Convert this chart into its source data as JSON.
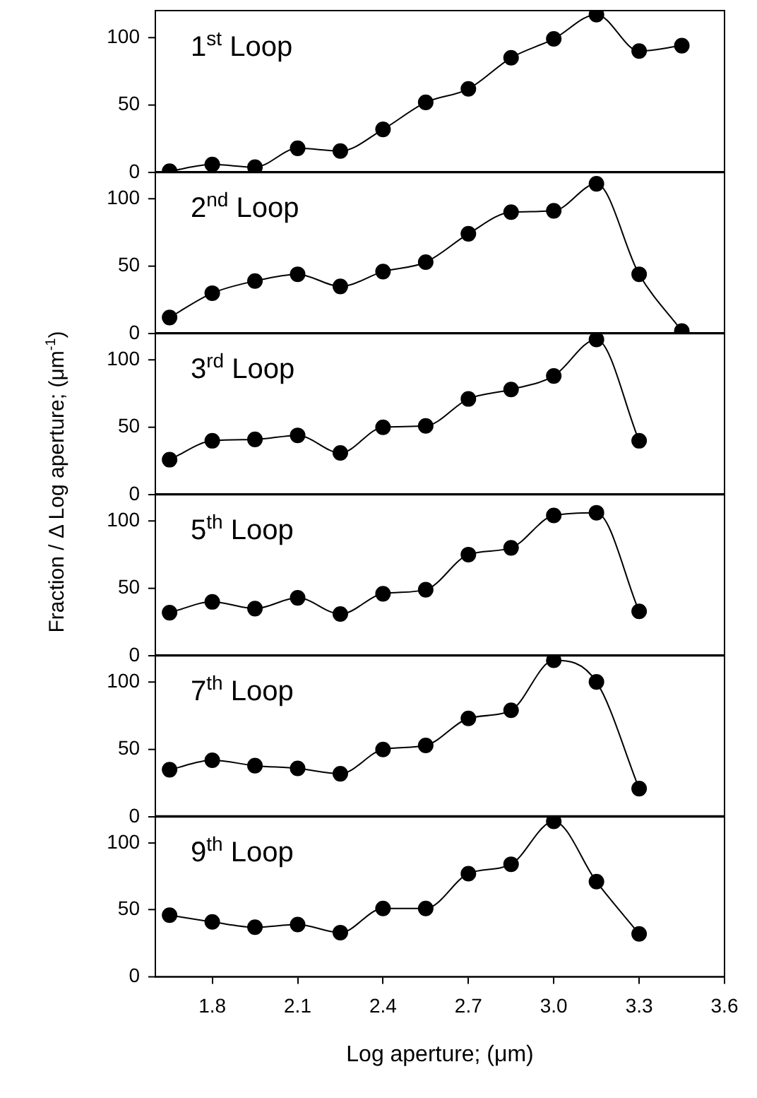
{
  "chart_data": [
    {
      "type": "line",
      "annotations": [
        "1$^{st}$ Loop"
      ],
      "x": [
        1.65,
        1.8,
        1.95,
        2.1,
        2.25,
        2.4,
        2.55,
        2.7,
        2.85,
        3.0,
        3.15,
        3.3,
        3.45
      ],
      "series": [
        {
          "color": "#000000",
          "values": [
            1,
            6,
            4,
            18,
            16,
            32,
            52,
            62,
            85,
            99,
            117,
            90,
            94
          ]
        }
      ],
      "xlim": [
        1.6,
        3.6
      ],
      "ylim": [
        0,
        120
      ],
      "yticks": [
        0,
        50,
        100
      ],
      "tick_labels": "y",
      "grid": false,
      "legend": false,
      "marker": "circle",
      "line_style": "solid"
    },
    {
      "type": "line",
      "annotations": [
        "2$^{nd}$ Loop"
      ],
      "x": [
        1.65,
        1.8,
        1.95,
        2.1,
        2.25,
        2.4,
        2.55,
        2.7,
        2.85,
        3.0,
        3.15,
        3.3,
        3.45
      ],
      "series": [
        {
          "color": "#000000",
          "values": [
            12,
            30,
            39,
            44,
            35,
            46,
            53,
            74,
            90,
            91,
            111,
            44,
            2
          ]
        }
      ],
      "xlim": [
        1.6,
        3.6
      ],
      "ylim": [
        0,
        120
      ],
      "yticks": [
        0,
        50,
        100
      ],
      "tick_labels": "y",
      "grid": false,
      "legend": false,
      "marker": "circle",
      "line_style": "solid"
    },
    {
      "type": "line",
      "ylabel": "Fraction / Δ Log aperture; (μm$^{-1}$)",
      "annotations": [
        "3$^{rd}$ Loop"
      ],
      "x": [
        1.65,
        1.8,
        1.95,
        2.1,
        2.25,
        2.4,
        2.55,
        2.7,
        2.85,
        3.0,
        3.15,
        3.3
      ],
      "series": [
        {
          "color": "#000000",
          "values": [
            26,
            40,
            41,
            44,
            31,
            50,
            51,
            71,
            78,
            88,
            115,
            40
          ]
        }
      ],
      "xlim": [
        1.6,
        3.6
      ],
      "ylim": [
        0,
        120
      ],
      "yticks": [
        0,
        50,
        100
      ],
      "tick_labels": "y",
      "grid": false,
      "legend": false,
      "marker": "circle",
      "line_style": "solid"
    },
    {
      "type": "line",
      "annotations": [
        "5$^{th}$ Loop"
      ],
      "x": [
        1.65,
        1.8,
        1.95,
        2.1,
        2.25,
        2.4,
        2.55,
        2.7,
        2.85,
        3.0,
        3.15,
        3.3
      ],
      "series": [
        {
          "color": "#000000",
          "values": [
            32,
            40,
            35,
            43,
            31,
            46,
            49,
            75,
            80,
            104,
            106,
            33
          ]
        }
      ],
      "xlim": [
        1.6,
        3.6
      ],
      "ylim": [
        0,
        120
      ],
      "yticks": [
        0,
        50,
        100
      ],
      "tick_labels": "y",
      "grid": false,
      "legend": false,
      "marker": "circle",
      "line_style": "solid"
    },
    {
      "type": "line",
      "annotations": [
        "7$^{th}$ Loop"
      ],
      "x": [
        1.65,
        1.8,
        1.95,
        2.1,
        2.25,
        2.4,
        2.55,
        2.7,
        2.85,
        3.0,
        3.15,
        3.3
      ],
      "series": [
        {
          "color": "#000000",
          "values": [
            35,
            42,
            38,
            36,
            32,
            50,
            53,
            73,
            79,
            116,
            100,
            21
          ]
        }
      ],
      "xlim": [
        1.6,
        3.6
      ],
      "ylim": [
        0,
        120
      ],
      "yticks": [
        0,
        50,
        100
      ],
      "tick_labels": "y",
      "grid": false,
      "legend": false,
      "marker": "circle",
      "line_style": "solid"
    },
    {
      "type": "line",
      "xlabel": "Log aperture; (μm)",
      "annotations": [
        "9$^{th}$ Loop"
      ],
      "x": [
        1.65,
        1.8,
        1.95,
        2.1,
        2.25,
        2.4,
        2.55,
        2.7,
        2.85,
        3.0,
        3.15,
        3.3
      ],
      "series": [
        {
          "color": "#000000",
          "values": [
            46,
            41,
            37,
            39,
            33,
            51,
            51,
            77,
            84,
            116,
            71,
            32
          ]
        }
      ],
      "xlim": [
        1.6,
        3.6
      ],
      "xticks": [
        1.8,
        2.1,
        2.4,
        2.7,
        {
          "value": 3,
          "label": "3.0"
        },
        3.3,
        3.6
      ],
      "ylim": [
        0,
        120
      ],
      "yticks": [
        0,
        50,
        100
      ],
      "grid": false,
      "legend": false,
      "marker": "circle",
      "line_style": "solid"
    }
  ]
}
